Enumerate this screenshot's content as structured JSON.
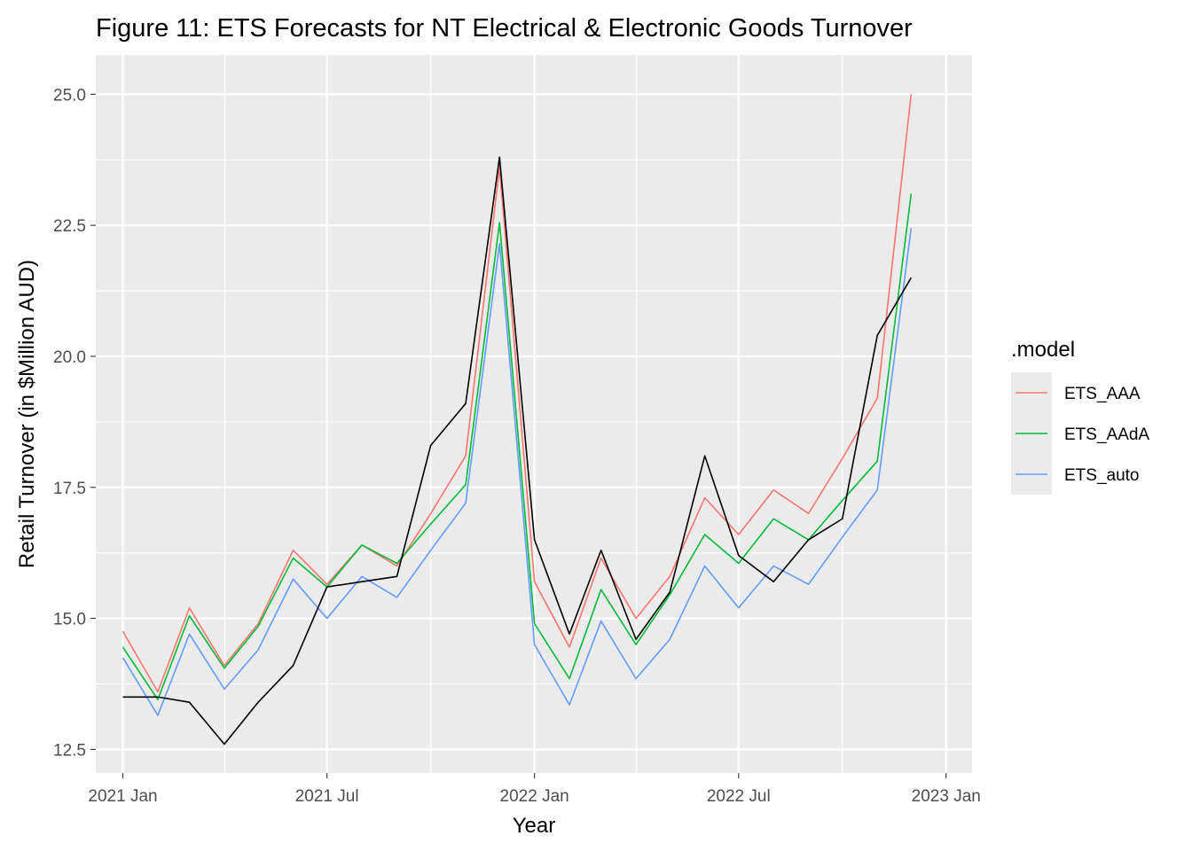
{
  "chart_data": {
    "type": "line",
    "title": "Figure 11: ETS Forecasts for NT Electrical & Electronic Goods Turnover",
    "xlabel": "Year",
    "ylabel": "Retail Turnover (in $Million AUD)",
    "x": [
      "2021-01",
      "2021-02",
      "2021-03",
      "2021-04",
      "2021-05",
      "2021-06",
      "2021-07",
      "2021-08",
      "2021-09",
      "2021-10",
      "2021-11",
      "2021-12",
      "2022-01",
      "2022-02",
      "2022-03",
      "2022-04",
      "2022-05",
      "2022-06",
      "2022-07",
      "2022-08",
      "2022-09",
      "2022-10",
      "2022-11",
      "2022-12"
    ],
    "x_ticks": [
      "2021 Jan",
      "2021 Jul",
      "2022 Jan",
      "2022 Jul",
      "2023 Jan"
    ],
    "y_ticks": [
      "12.5",
      "15.0",
      "17.5",
      "20.0",
      "22.5",
      "25.0"
    ],
    "ylim": [
      12.05,
      25.75
    ],
    "xlim": [
      "2020-12-08",
      "2023-01-24"
    ],
    "grid": true,
    "legend_position": "right",
    "legend_title": ".model",
    "actual": {
      "color": "#000000",
      "values": [
        13.5,
        13.5,
        13.4,
        12.6,
        13.4,
        14.1,
        15.6,
        15.7,
        15.8,
        18.3,
        19.1,
        23.8,
        16.5,
        14.7,
        16.3,
        14.6,
        15.5,
        18.1,
        16.2,
        15.7,
        16.5,
        16.9,
        20.4,
        21.5
      ]
    },
    "series": [
      {
        "name": "ETS_AAA",
        "color": "#F8766D",
        "values": [
          14.75,
          13.6,
          15.2,
          14.1,
          14.9,
          16.3,
          15.65,
          16.4,
          16.0,
          17.0,
          18.1,
          23.6,
          15.7,
          14.45,
          16.15,
          15.0,
          15.8,
          17.3,
          16.6,
          17.45,
          17.0,
          18.05,
          19.2,
          25.0
        ]
      },
      {
        "name": "ETS_AAdA",
        "color": "#00BA38",
        "values": [
          14.45,
          13.45,
          15.05,
          14.05,
          14.85,
          16.15,
          15.6,
          16.4,
          16.05,
          16.8,
          17.55,
          22.55,
          14.9,
          13.85,
          15.55,
          14.5,
          15.45,
          16.6,
          16.05,
          16.9,
          16.5,
          17.25,
          18.0,
          23.1
        ]
      },
      {
        "name": "ETS_auto",
        "color": "#619CFF",
        "values": [
          14.25,
          13.15,
          14.7,
          13.65,
          14.4,
          15.75,
          15.0,
          15.8,
          15.4,
          16.3,
          17.2,
          22.15,
          14.5,
          13.35,
          14.95,
          13.85,
          14.6,
          16.0,
          15.2,
          16.0,
          15.65,
          16.55,
          17.45,
          22.45
        ]
      }
    ]
  }
}
